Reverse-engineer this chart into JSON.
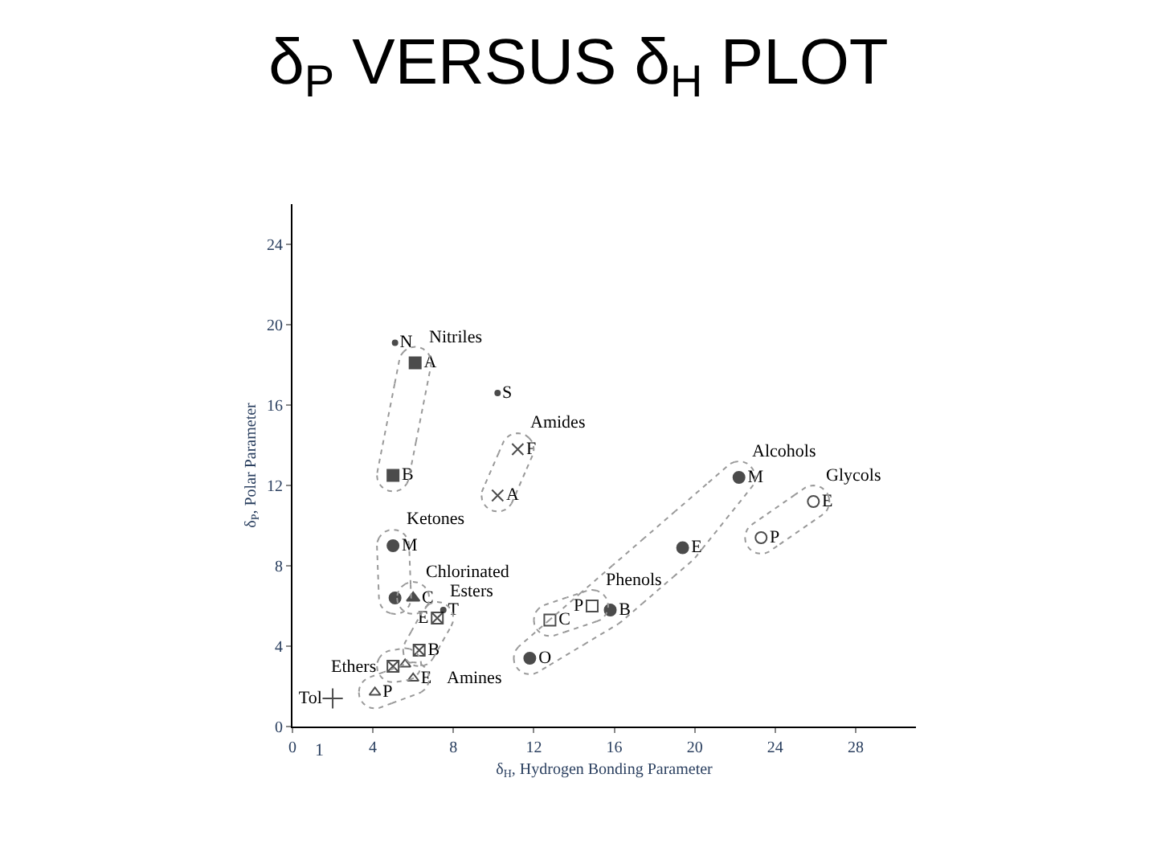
{
  "chart_data": {
    "type": "scatter",
    "title": "δ$_{P}$ VERSUS δ$_{H}$ PLOT",
    "xlabel": "δ$_{H}$, Hydrogen Bonding Parameter",
    "ylabel": "δ$_{P}$, Polar Parameter",
    "xlim": [
      0,
      31
    ],
    "ylim": [
      0,
      26
    ],
    "xticks": [
      0,
      4,
      8,
      12,
      16,
      20,
      24,
      28
    ],
    "yticks": [
      0,
      4,
      8,
      12,
      16,
      20,
      24
    ],
    "series": [
      {
        "name": "Nitriles",
        "color": "#000000",
        "marker": "square",
        "x": [
          6.1,
          5.0
        ],
        "values": [
          18.1,
          12.5
        ],
        "value_labels": [
          "A",
          "B"
        ]
      },
      {
        "name": "Amides",
        "color": "#000000",
        "marker": "x",
        "x": [
          11.2,
          10.2
        ],
        "values": [
          13.8,
          11.5
        ],
        "value_labels": [
          "F",
          "A"
        ]
      },
      {
        "name": "Alcohols",
        "color": "#000000",
        "marker": "circle",
        "x": [
          22.2,
          19.4,
          15.8,
          11.8
        ],
        "values": [
          12.4,
          8.9,
          5.8,
          3.4
        ],
        "value_labels": [
          "M",
          "E",
          "B",
          "O"
        ]
      },
      {
        "name": "Glycols",
        "color": "#000000",
        "marker": "circle-open",
        "x": [
          25.9,
          23.3
        ],
        "values": [
          11.2,
          9.4
        ],
        "value_labels": [
          "E",
          "P"
        ]
      },
      {
        "name": "Phenols",
        "color": "#000000",
        "marker": "square-open",
        "x": [
          14.9,
          12.8
        ],
        "values": [
          6.0,
          5.3
        ],
        "value_labels": [
          "P",
          "C"
        ]
      },
      {
        "name": "Ketones",
        "color": "#000000",
        "marker": "circle",
        "x": [
          5.0,
          5.1
        ],
        "values": [
          9.0,
          6.4
        ],
        "value_labels": [
          "M",
          null
        ]
      },
      {
        "name": "Chlorinated",
        "color": "#000000",
        "marker": "triangle",
        "x": [
          6.0
        ],
        "values": [
          6.4
        ],
        "value_labels": [
          "C"
        ]
      },
      {
        "name": "Esters",
        "color": "#000000",
        "marker": "cross",
        "x": [
          7.2,
          6.3
        ],
        "values": [
          5.4,
          3.8
        ],
        "value_labels": [
          "E",
          "B"
        ]
      },
      {
        "name": "Ethers",
        "color": "#000000",
        "marker": [
          "square-x",
          "triangle-open"
        ],
        "x": [
          5.0,
          5.6
        ],
        "values": [
          3.0,
          3.1
        ],
        "value_labels": [
          null,
          null
        ]
      },
      {
        "name": "Amines",
        "color": "#000000",
        "marker": "triangle-open",
        "x": [
          6.0,
          4.1
        ],
        "values": [
          2.4,
          1.7
        ],
        "value_labels": [
          "E",
          "P"
        ]
      },
      {
        "color": "#000000",
        "marker": [
          "plus",
          "dot",
          "dot",
          "dot"
        ],
        "x": [
          2.0,
          5.1,
          10.2,
          7.5
        ],
        "values": [
          1.4,
          19.1,
          16.6,
          5.8
        ],
        "value_labels": [
          "Tol",
          "N",
          "S",
          "T"
        ]
      }
    ],
    "annotations": [
      "1"
    ]
  }
}
